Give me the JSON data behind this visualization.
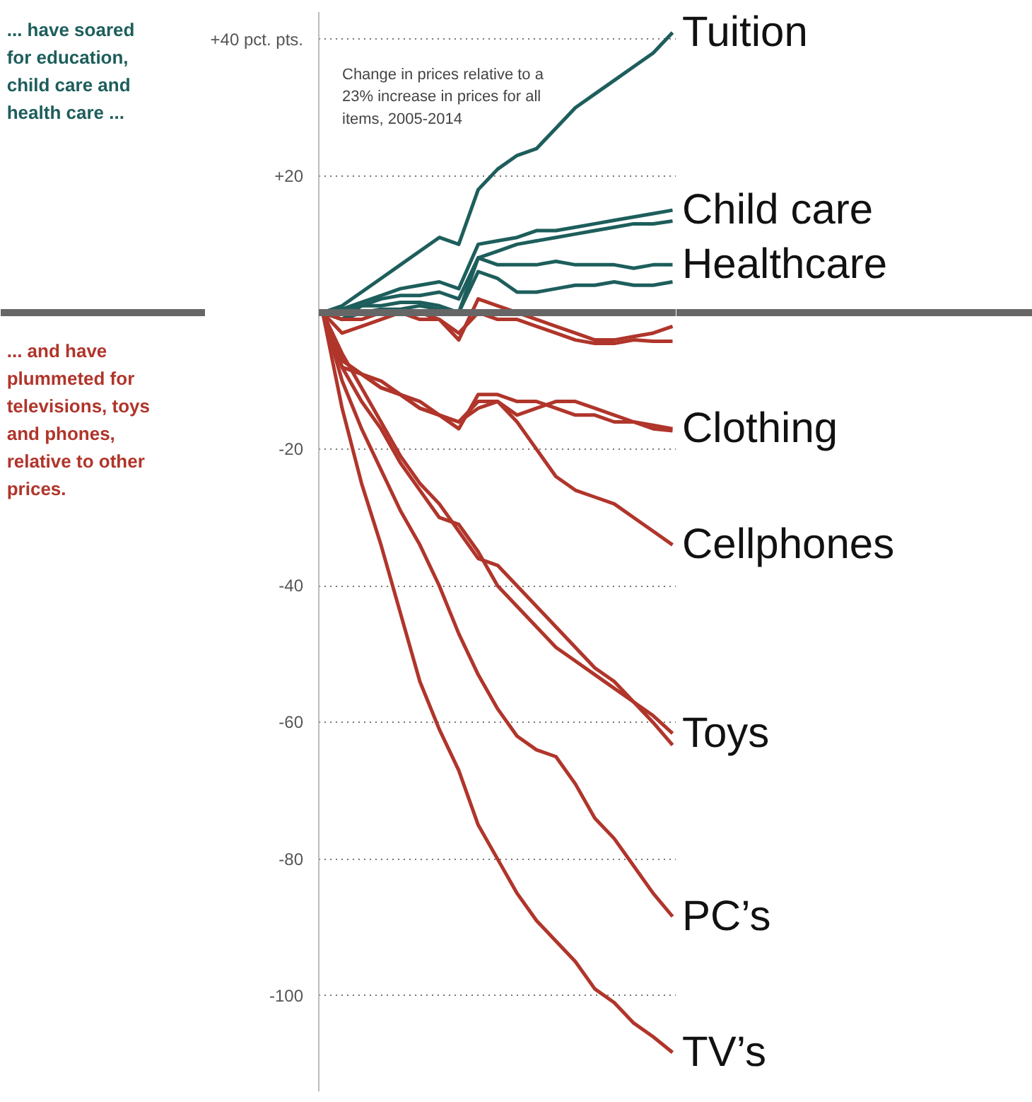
{
  "chart_data": {
    "type": "line",
    "categories": [
      null,
      null,
      null,
      null,
      null,
      null,
      null,
      null,
      null,
      null,
      null,
      null,
      null,
      null,
      null,
      null,
      null,
      null,
      null
    ],
    "series": [
      {
        "name": "Tuition",
        "color": "#1d5e5c",
        "values": [
          0,
          1,
          3,
          5,
          7,
          9,
          11,
          10,
          18,
          21,
          23,
          24,
          27,
          30,
          32,
          34,
          36,
          38,
          41
        ]
      },
      {
        "name": "Child care",
        "color": "#1d5e5c",
        "values": [
          0,
          0.5,
          1.5,
          2.5,
          3.5,
          4,
          4.5,
          3.5,
          10,
          10.5,
          11,
          12,
          12,
          12.5,
          13,
          13.5,
          14,
          14.5,
          15
        ]
      },
      {
        "color": "#1d5e5c",
        "values": [
          0,
          -1,
          1,
          2,
          2.5,
          2.5,
          3,
          2,
          8,
          9,
          10,
          10.5,
          11,
          11.5,
          12,
          12.5,
          13,
          13,
          13.4
        ]
      },
      {
        "name": "Healthcare",
        "color": "#1d5e5c",
        "values": [
          0,
          0,
          1,
          1,
          1.5,
          1.5,
          1,
          0,
          8,
          7,
          7,
          7,
          7.5,
          7,
          7,
          7,
          6.5,
          7,
          7
        ]
      },
      {
        "color": "#1d5e5c",
        "values": [
          0,
          -1,
          0,
          0.5,
          0.5,
          1,
          0.5,
          0,
          6,
          5,
          3,
          3,
          3.5,
          4,
          4,
          4.5,
          4,
          4,
          4.5
        ]
      },
      {
        "color": "#b0352b",
        "values": [
          0,
          -1,
          -1,
          0,
          0,
          -1,
          -1,
          -4,
          2,
          1,
          0,
          -1,
          -2,
          -3,
          -4,
          -4,
          -3.5,
          -3,
          -2
        ]
      },
      {
        "color": "#b0352b",
        "values": [
          0,
          -3,
          -2,
          -1,
          0,
          0,
          -1,
          -3,
          0,
          -1,
          -1,
          -2,
          -3,
          -4,
          -4.5,
          -4.5,
          -4,
          -4.2,
          -4.2
        ]
      },
      {
        "name": "Clothing",
        "color": "#b0352b",
        "values": [
          0,
          -8,
          -9,
          -11,
          -12,
          -14,
          -15,
          -17,
          -12,
          -12,
          -13,
          -13,
          -14,
          -15,
          -15,
          -16,
          -16,
          -16.5,
          -17
        ]
      },
      {
        "color": "#b0352b",
        "values": [
          0,
          -7,
          -9,
          -10,
          -12,
          -13,
          -15,
          -16,
          -14,
          -13,
          -15,
          -14,
          -13,
          -13,
          -14,
          -15,
          -16,
          -17,
          -17.3
        ]
      },
      {
        "name": "Cellphones",
        "color": "#b0352b",
        "values": [
          0,
          -7,
          -9,
          -11,
          -12,
          -14,
          -15,
          -16,
          -13,
          -13,
          -16,
          -20,
          -24,
          -26,
          -27,
          -28,
          -30,
          -32,
          -34
        ]
      },
      {
        "name": "Toys",
        "color": "#b0352b",
        "values": [
          0,
          -8,
          -13,
          -17,
          -22,
          -26,
          -30,
          -31,
          -35,
          -40,
          -43,
          -46,
          -49,
          -51,
          -53,
          -55,
          -57,
          -59,
          -61.6
        ]
      },
      {
        "color": "#b0352b",
        "values": [
          0,
          -6,
          -11,
          -16,
          -21,
          -25,
          -28,
          -32,
          -36,
          -37,
          -40,
          -43,
          -46,
          -49,
          -52,
          -54,
          -57,
          -60,
          -63.3
        ]
      },
      {
        "name": "PC’s",
        "color": "#b0352b",
        "values": [
          0,
          -10,
          -17,
          -23,
          -29,
          -34,
          -40,
          -47,
          -53,
          -58,
          -62,
          -64,
          -65,
          -69,
          -74,
          -77,
          -81,
          -85,
          -88.4
        ]
      },
      {
        "name": "TV’s",
        "color": "#b0352b",
        "values": [
          0,
          -14,
          -25,
          -34,
          -44,
          -54,
          -61,
          -67,
          -75,
          -80,
          -85,
          -89,
          -92,
          -95,
          -99,
          -101,
          -104,
          -106,
          -108.3
        ]
      }
    ],
    "ylim": [
      -114,
      44
    ],
    "yticks": [
      {
        "value": 40,
        "label": "+40 pct. pts."
      },
      {
        "value": 20,
        "label": "+20"
      },
      -20,
      -40,
      -60,
      -80,
      -100
    ],
    "grid": "y",
    "legend": false,
    "tick_labels": "y",
    "line_style": "solid",
    "marker": "none",
    "ref_lines": [
      {
        "axis": "y",
        "value": 0,
        "color": "#666666"
      }
    ],
    "annotations": [
      "... have soared\nfor education,\nchild care and\nhealth care ...",
      "... and have\nplummeted for\ntelevisions, toys\nand phones,\nrelative to other\nprices.",
      "Change in prices relative to a\n23% increase in prices for all\nitems, 2005-2014"
    ]
  }
}
